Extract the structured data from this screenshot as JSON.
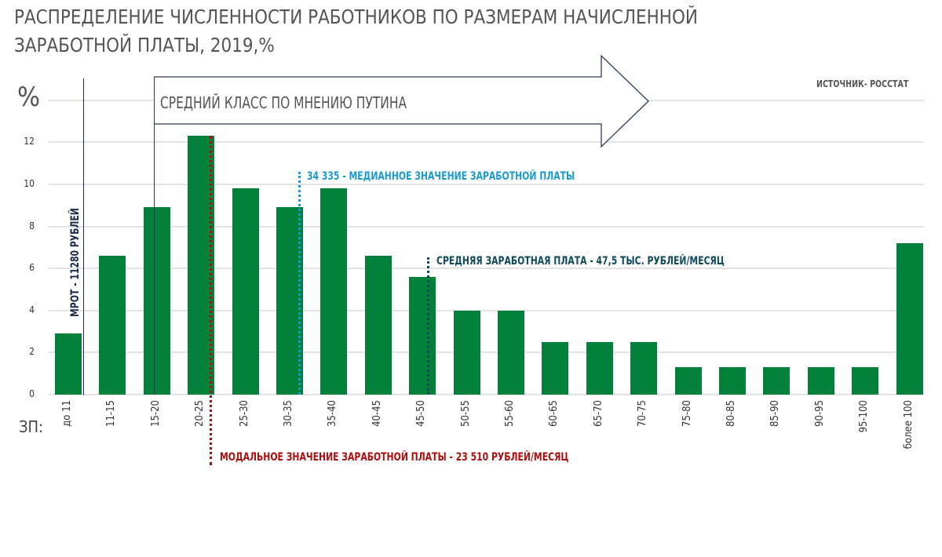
{
  "header": {
    "title_line1": "РАСПРЕДЕЛЕНИЕ ЧИСЛЕННОСТИ РАБОТНИКОВ  ПО РАЗМЕРАМ НАЧИСЛЕННОЙ",
    "title_line2": "ЗАРАБОТНОЙ ПЛАТЫ, 2019,%",
    "y_unit": "%",
    "source": "ИСТОЧНИК- РОССТАТ"
  },
  "annotations": {
    "middle_class_arrow": "СРЕДНИЙ КЛАСС ПО МНЕНИЮ ПУТИНА",
    "mrot": "МРОТ - 11280 РУБЛЕЙ",
    "median": "34 335 - МЕДИАННОЕ ЗНАЧЕНИЕ ЗАРАБОТНОЙ ПЛАТЫ",
    "average": "СРЕДНЯЯ ЗАРАБОТНАЯ ПЛАТА - 47,5 ТЫС. РУБЛЕЙ/МЕСЯЦ",
    "mode": "МОДАЛЬНОЕ ЗНАЧЕНИЕ ЗАРАБОТНОЙ ПЛАТЫ - 23 510 РУБЛЕЙ/МЕСЯЦ",
    "x_prefix": "ЗП:"
  },
  "colors": {
    "bar": "#03813a",
    "median": "#1a9bd0",
    "average": "#0d4a5a",
    "mode": "#b00d0d",
    "mrot": "#1b2a4a",
    "title": "#555555"
  },
  "chart_data": {
    "type": "bar",
    "title": "РАСПРЕДЕЛЕНИЕ ЧИСЛЕННОСТИ РАБОТНИКОВ ПО РАЗМЕРАМ НАЧИСЛЕННОЙ ЗАРАБОТНОЙ ПЛАТЫ, 2019,%",
    "xlabel": "ЗП:",
    "ylabel": "%",
    "ylim": [
      0,
      14
    ],
    "yticks": [
      0,
      2,
      4,
      6,
      8,
      10,
      12
    ],
    "grid": true,
    "categories": [
      "до 11",
      "11-15",
      "15-20",
      "20-25",
      "25-30",
      "30-35",
      "35-40",
      "40-45",
      "45-50",
      "50-55",
      "55-60",
      "60-65",
      "65-70",
      "70-75",
      "75-80",
      "80-85",
      "85-90",
      "90-95",
      "95-100",
      "более 100"
    ],
    "values": [
      2.9,
      6.6,
      8.9,
      12.3,
      9.8,
      8.9,
      9.8,
      6.6,
      5.6,
      4.0,
      4.0,
      2.5,
      2.5,
      2.5,
      1.3,
      1.3,
      1.3,
      1.3,
      1.3,
      7.2
    ],
    "source": "ИСТОЧНИК- РОССТАТ",
    "annotations": [
      {
        "text": "МРОТ - 11280 РУБЛЕЙ",
        "type": "vertical-line",
        "position": "between до 11 and 11-15"
      },
      {
        "text": "СРЕДНИЙ КЛАСС ПО МНЕНИЮ ПУТИНА",
        "type": "arrow",
        "start": "15-20"
      },
      {
        "text": "МОДАЛЬНОЕ ЗНАЧЕНИЕ ЗАРАБОТНОЙ ПЛАТЫ - 23 510 РУБЛЕЙ/МЕСЯЦ",
        "type": "dotted-line",
        "position": "20-25"
      },
      {
        "text": "34 335 - МЕДИАННОЕ ЗНАЧЕНИЕ ЗАРАБОТНОЙ ПЛАТЫ",
        "type": "dotted-line",
        "position": "30-35"
      },
      {
        "text": "СРЕДНЯЯ ЗАРАБОТНАЯ ПЛАТА - 47,5 ТЫС. РУБЛЕЙ/МЕСЯЦ",
        "type": "dotted-line",
        "position": "45-50"
      }
    ]
  }
}
